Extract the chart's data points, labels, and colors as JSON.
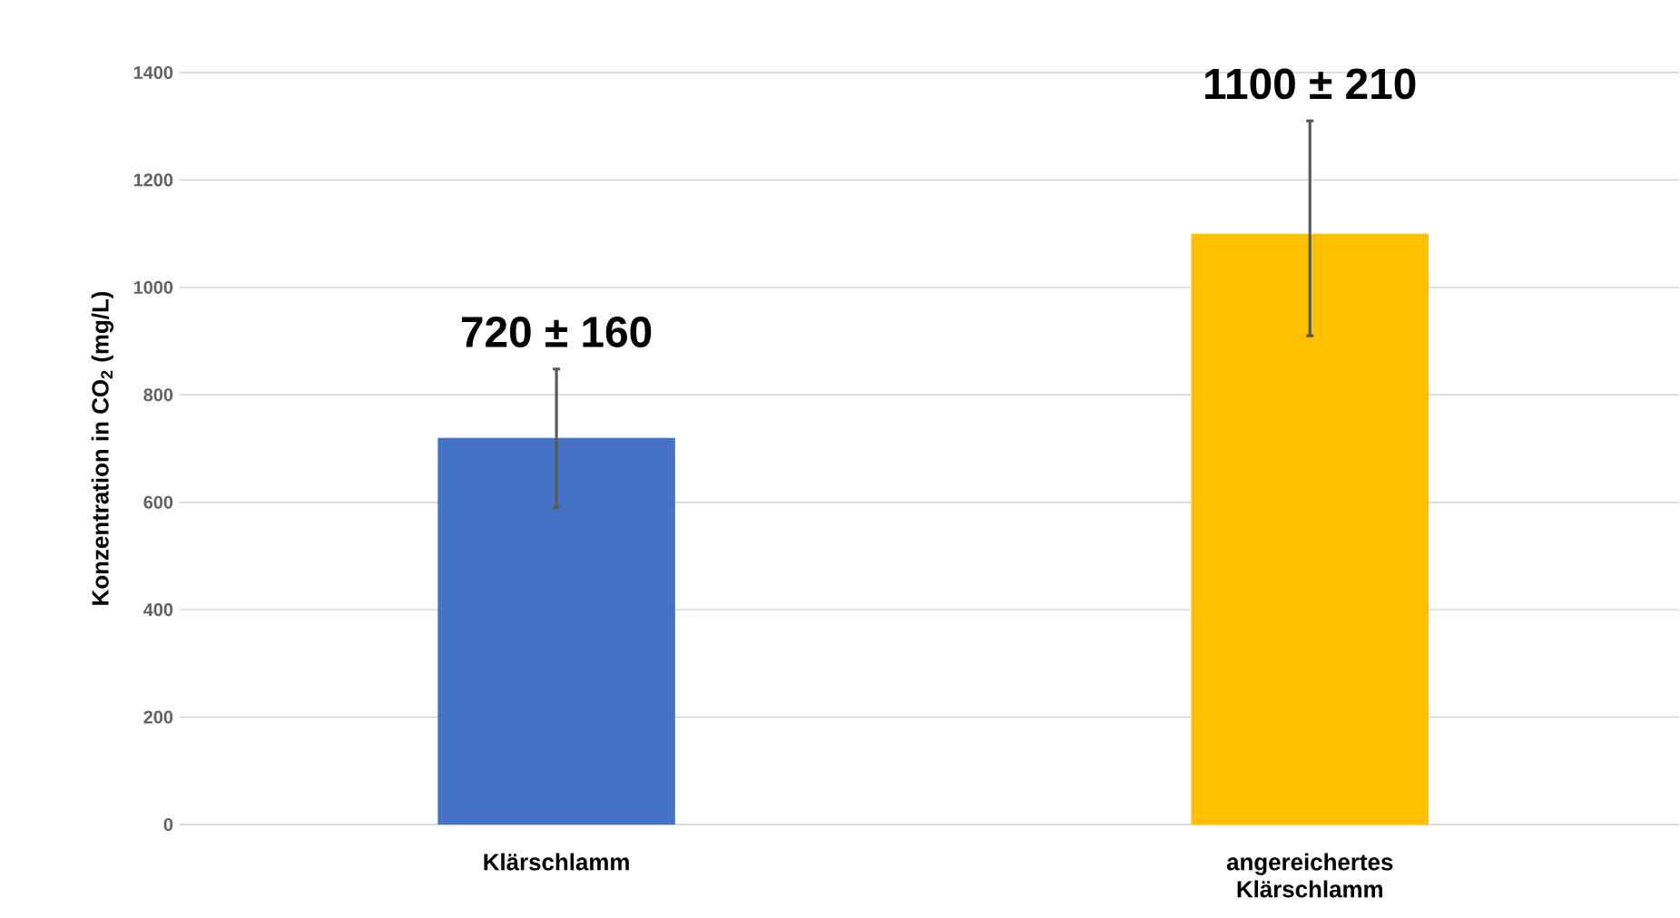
{
  "chart_data": {
    "type": "bar",
    "ylabel": "Konzentration in CO$_{2}$ (mg/L)",
    "categories": [
      "Klärschlamm",
      "angereichertes Klärschlamm"
    ],
    "values": [
      720,
      1100
    ],
    "colors": [
      "#4472c4",
      "#ffc000"
    ],
    "errors": [
      [
        590,
        848
      ],
      [
        910,
        1310
      ]
    ],
    "value_labels": [
      "720 ± 160",
      "1100 ± 210"
    ],
    "ylim": [
      0,
      1400
    ],
    "yticks": [
      0,
      200,
      400,
      600,
      800,
      1000,
      1200,
      1400
    ],
    "grid": "y"
  }
}
